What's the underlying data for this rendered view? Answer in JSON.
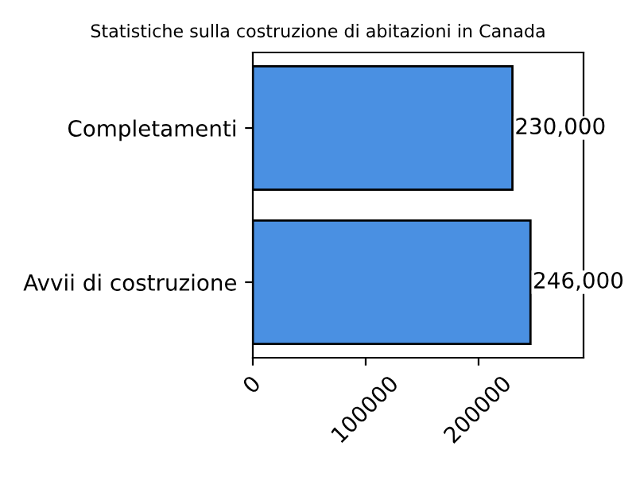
{
  "chart_data": {
    "type": "bar",
    "orientation": "horizontal",
    "title": "Statistiche sulla costruzione di abitazioni in Canada",
    "categories": [
      "Completamenti",
      "Avvii di costruzione"
    ],
    "values": [
      230000,
      246000
    ],
    "color": "#4a90e2",
    "value_labels": [
      "230,000",
      "246,000"
    ],
    "xlim": [
      0,
      293000
    ],
    "xticks": [
      0,
      100000,
      200000
    ],
    "grid": false
  }
}
